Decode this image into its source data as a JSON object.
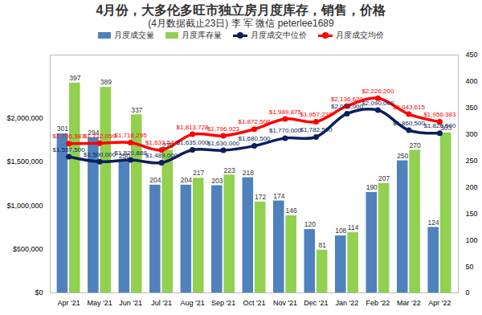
{
  "chart_data": {
    "type": "bar",
    "title": "4月份，大多伦多旺市独立房月度库存，销售，价格",
    "subtitle": "(4月数据截止23日) 李 军  微信 peterlee1689",
    "categories": [
      "Apr '21",
      "May '21",
      "Jun '21",
      "Jul '21",
      "Aug '21",
      "Sep '21",
      "Oct '21",
      "Nov '21",
      "Dec '21",
      "Jan '22",
      "Feb '22",
      "Mar '22",
      "Apr '22"
    ],
    "ylim": [
      0,
      2720000
    ],
    "yticks": [
      {
        "value": 0,
        "label": "$0"
      },
      {
        "value": 500000,
        "label": "$500,000"
      },
      {
        "value": 1000000,
        "label": "$1,000,000"
      },
      {
        "value": 1500000,
        "label": "$1,500,000"
      },
      {
        "value": 2000000,
        "label": "$2,000,000"
      }
    ],
    "y2lim": [
      0,
      450
    ],
    "y2ticks": [
      0,
      50,
      100,
      150,
      200,
      250,
      300,
      350,
      400,
      450
    ],
    "grid": false,
    "legend": "top",
    "data_labels": true,
    "series": [
      {
        "name": "月度成交量",
        "type": "bar",
        "axis": "y2",
        "color": "#4f81bd",
        "values": [
          301,
          294,
          250,
          204,
          204,
          203,
          218,
          174,
          120,
          108,
          190,
          250,
          124
        ]
      },
      {
        "name": "月度库存量",
        "type": "bar",
        "axis": "y2",
        "color": "#92d050",
        "values": [
          397,
          389,
          337,
          270,
          217,
          223,
          172,
          146,
          81,
          114,
          207,
          270,
          303
        ]
      },
      {
        "name": "月度成交中位价",
        "type": "line",
        "marker": "circle",
        "color": "#0b1f5c",
        "values": [
          1557500,
          1500000,
          1520888,
          1489000,
          1635000,
          1630000,
          1680500,
          1770000,
          1782500,
          2050000,
          2090000,
          1860500,
          1826500
        ],
        "value_labels": [
          "$1,557,500",
          "$1,500,000",
          "$1,520,888",
          "$1,489,000",
          "$1,635,000",
          "$1,630,000",
          "$1,680,500",
          "$1,770,000",
          "$1,782,500",
          "$2,050,000",
          "$2,090,000",
          "$1,860,500",
          "$1,826,500"
        ]
      },
      {
        "name": "月度成交均价",
        "type": "line",
        "marker": "circle",
        "color": "#ff0000",
        "values": [
          1706383,
          1712059,
          1718295,
          1633544,
          1813728,
          1796923,
          1872508,
          1989875,
          1957232,
          2136620,
          2226200,
          2043615,
          1956383
        ],
        "value_labels": [
          "$1,706,383",
          "$1,712,059",
          "$1,718,295",
          "$1,633,544",
          "$1,813,728",
          "$1,796,923",
          "$1,872,508",
          "$1,989,875",
          "$1,957,232",
          "$2,136,620",
          "$2,226,200",
          "$2,043,615",
          "$1,956,383"
        ]
      }
    ]
  }
}
